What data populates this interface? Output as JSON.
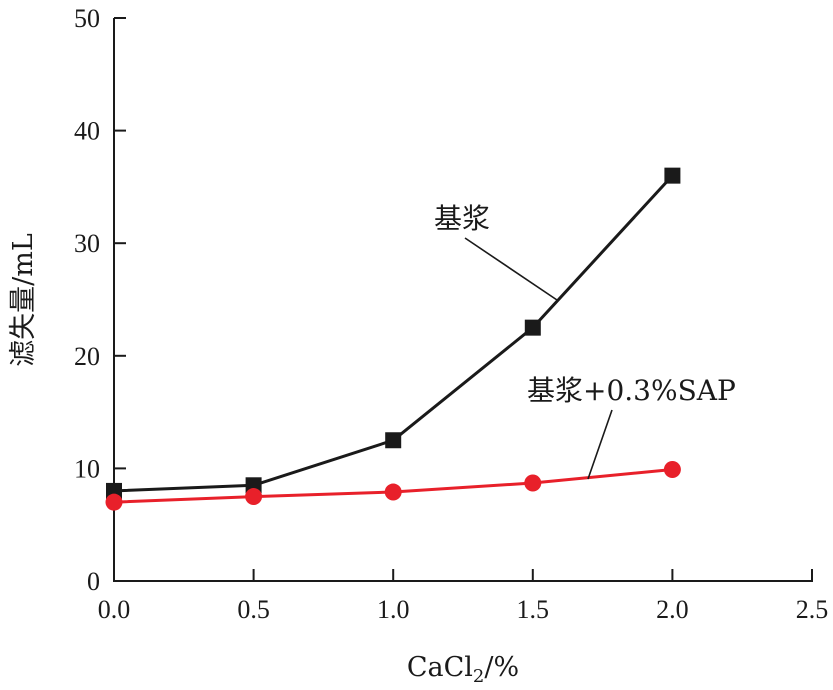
{
  "chart_data": {
    "type": "line",
    "x": [
      0.0,
      0.5,
      1.0,
      1.5,
      2.0
    ],
    "series": [
      {
        "name": "基浆",
        "values": [
          8.0,
          8.5,
          12.5,
          22.5,
          36.0
        ],
        "color": "#1a1a1a",
        "marker": "square"
      },
      {
        "name": "基浆+0.3%SAP",
        "values": [
          7.0,
          7.5,
          7.9,
          8.7,
          9.9
        ],
        "color": "#e8202a",
        "marker": "circle"
      }
    ],
    "xlim": [
      0.0,
      2.5
    ],
    "ylim": [
      0,
      50
    ],
    "xticks": [
      "0.0",
      "0.5",
      "1.0",
      "1.5",
      "2.0",
      "2.5"
    ],
    "yticks": [
      "0",
      "10",
      "20",
      "30",
      "40",
      "50"
    ],
    "xlabel": {
      "main": "CaCl",
      "sub": "2",
      "unit": "/%"
    },
    "ylabel": "滤失量/mL",
    "grid": false,
    "legend": "inline labels with leader lines"
  }
}
